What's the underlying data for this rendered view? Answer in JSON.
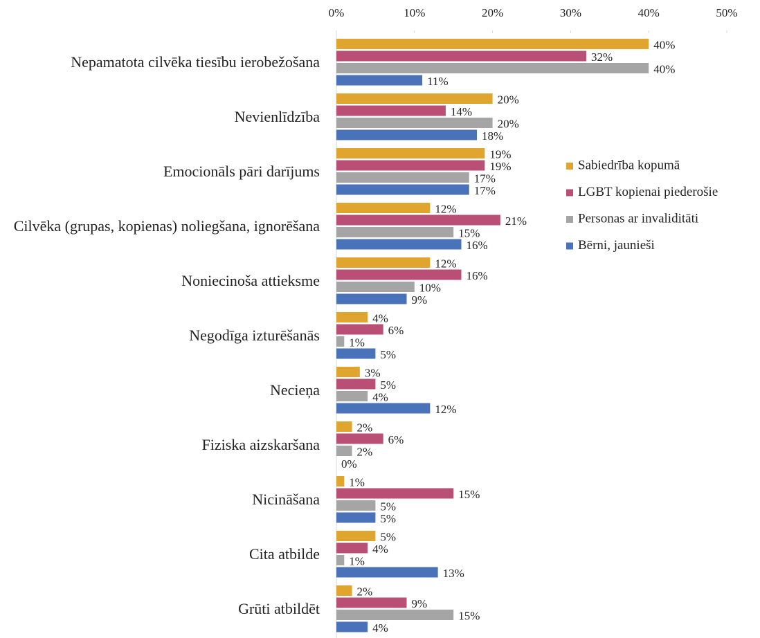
{
  "chart_data": {
    "type": "hbar",
    "categories": [
      "Nepamatota cilvēka tiesību ierobežošana",
      "Nevienlīdzība",
      "Emocionāls pāri darījums",
      "Cilvēka (grupas, kopienas) noliegšana, ignorēšana",
      "Noniecinoša attieksme",
      "Negodīga izturēšanās",
      "Necieņa",
      "Fiziska aizskaršana",
      "Nicināšana",
      "Cita atbilde",
      "Grūti atbildēt"
    ],
    "series": [
      {
        "name": "Sabiedrība kopumā",
        "color": "#E0A52E",
        "values": [
          40,
          20,
          19,
          12,
          12,
          4,
          3,
          2,
          1,
          5,
          2
        ],
        "value_labels": [
          "40%",
          "20%",
          "19%",
          "12%",
          "12%",
          "4%",
          "3%",
          "2%",
          "1%",
          "5%",
          "2%"
        ]
      },
      {
        "name": "LGBT kopienai piederošie",
        "color": "#B94F74",
        "values": [
          32,
          14,
          19,
          21,
          16,
          6,
          5,
          6,
          15,
          4,
          9
        ],
        "value_labels": [
          "32%",
          "14%",
          "19%",
          "21%",
          "16%",
          "6%",
          "5%",
          "6%",
          "15%",
          "4%",
          "9%"
        ]
      },
      {
        "name": "Personas ar invaliditāti",
        "color": "#A5A5A5",
        "values": [
          40,
          20,
          17,
          15,
          10,
          1,
          4,
          2,
          5,
          1,
          15
        ],
        "value_labels": [
          "40%",
          "20%",
          "17%",
          "15%",
          "10%",
          "1%",
          "4%",
          "2%",
          "5%",
          "1%",
          "15%"
        ]
      },
      {
        "name": "Bērni, jaunieši",
        "color": "#4A72B8",
        "values": [
          11,
          18,
          17,
          16,
          9,
          5,
          12,
          0,
          5,
          13,
          4
        ],
        "value_labels": [
          "11%",
          "18%",
          "17%",
          "16%",
          "9%",
          "5%",
          "12%",
          "0%",
          "5%",
          "13%",
          "4%"
        ]
      }
    ],
    "xlim": [
      0,
      50
    ],
    "xticks": [
      {
        "value": 0,
        "label": "0%"
      },
      {
        "value": 10,
        "label": "10%"
      },
      {
        "value": 20,
        "label": "20%"
      },
      {
        "value": 30,
        "label": "30%"
      },
      {
        "value": 40,
        "label": "40%"
      },
      {
        "value": 50,
        "label": "50%"
      }
    ],
    "legend": "right"
  }
}
